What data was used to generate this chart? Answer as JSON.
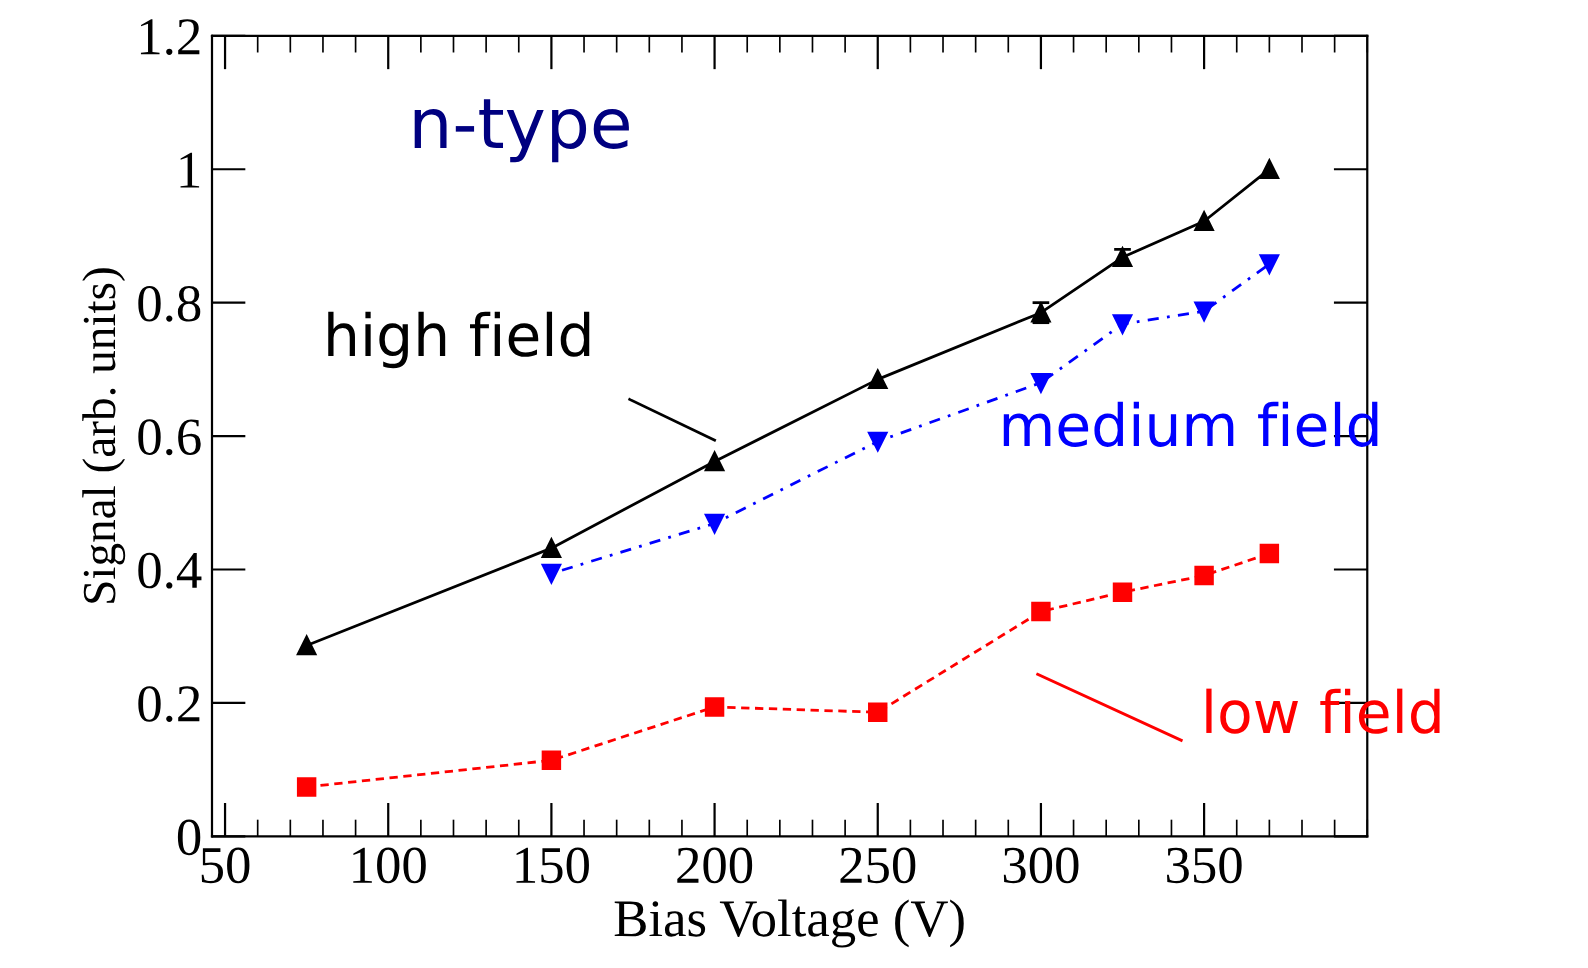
{
  "chart_data": {
    "type": "line",
    "xlabel": "Bias Voltage (V)",
    "ylabel": "Signal (arb. units)",
    "xlim": [
      46,
      400
    ],
    "xticks": [
      50,
      100,
      150,
      200,
      250,
      300,
      350
    ],
    "ylim": [
      0,
      1.2
    ],
    "yticks": [
      0,
      0.2,
      0.4,
      0.6,
      0.8,
      1,
      1.2
    ],
    "grid": false,
    "legend": "right",
    "annotations": [
      "n-type"
    ],
    "series": [
      {
        "name": "high field",
        "color": "#000000",
        "marker": "triangle",
        "line_style": "solid",
        "x": [
          75,
          150,
          200,
          250,
          300,
          325,
          350,
          370
        ],
        "values": [
          0.286,
          0.432,
          0.562,
          0.685,
          0.785,
          0.868,
          0.922,
          1.0
        ],
        "errors": [
          null,
          null,
          null,
          null,
          0.015,
          0.012,
          null,
          null
        ]
      },
      {
        "name": "medium field",
        "color": "#0000ff",
        "marker": "triangle_down",
        "line_style": "dashdot",
        "x": [
          150,
          200,
          250,
          300,
          325,
          350,
          370
        ],
        "values": [
          0.394,
          0.469,
          0.592,
          0.68,
          0.768,
          0.787,
          0.858
        ]
      },
      {
        "name": "low field",
        "color": "#ff0000",
        "marker": "square",
        "line_style": "dashed",
        "x": [
          75,
          150,
          200,
          250,
          300,
          325,
          350,
          370
        ],
        "values": [
          0.074,
          0.114,
          0.194,
          0.186,
          0.337,
          0.366,
          0.391,
          0.424
        ]
      }
    ]
  }
}
